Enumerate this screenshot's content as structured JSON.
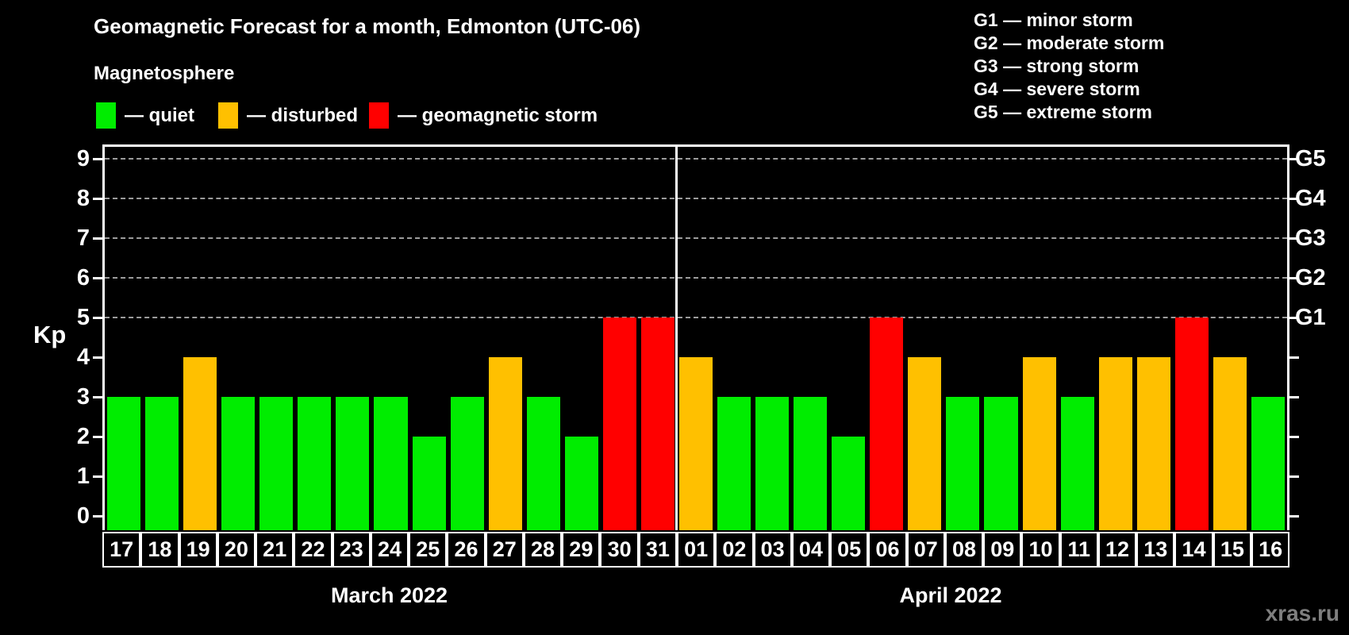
{
  "header": {
    "title": "Geomagnetic Forecast for a month, Edmonton (UTC-06)",
    "subtitle": "Magnetosphere"
  },
  "legend": {
    "items": [
      {
        "key": "quiet",
        "label": "— quiet",
        "color": "#00ed00"
      },
      {
        "key": "disturbed",
        "label": "— disturbed",
        "color": "#ffc000"
      },
      {
        "key": "storm",
        "label": "— geomagnetic storm",
        "color": "#ff0000"
      }
    ]
  },
  "g_scale_legend": {
    "items": [
      "G1 — minor storm",
      "G2 — moderate storm",
      "G3 — strong storm",
      "G4 — severe storm",
      "G5 — extreme storm"
    ]
  },
  "chart_data": {
    "type": "bar",
    "title": "Geomagnetic Forecast for a month, Edmonton (UTC-06)",
    "ylabel": "Kp",
    "ylim": [
      -0.4,
      9.3
    ],
    "grid": true,
    "legend_position": "top-left",
    "y_ticks": [
      0,
      1,
      2,
      3,
      4,
      5,
      6,
      7,
      8,
      9
    ],
    "grid_kp_levels": [
      5,
      6,
      7,
      8,
      9
    ],
    "right_axis_labels": [
      {
        "label": "G1",
        "kp": 5
      },
      {
        "label": "G2",
        "kp": 6
      },
      {
        "label": "G3",
        "kp": 7
      },
      {
        "label": "G4",
        "kp": 8
      },
      {
        "label": "G5",
        "kp": 9
      }
    ],
    "groups": [
      {
        "month": "March 2022",
        "days": [
          "17",
          "18",
          "19",
          "20",
          "21",
          "22",
          "23",
          "24",
          "25",
          "26",
          "27",
          "28",
          "29",
          "30",
          "31"
        ],
        "values": [
          3,
          3,
          4,
          3,
          3,
          3,
          3,
          3,
          2,
          3,
          4,
          3,
          2,
          5,
          5
        ],
        "status": [
          "quiet",
          "quiet",
          "disturbed",
          "quiet",
          "quiet",
          "quiet",
          "quiet",
          "quiet",
          "quiet",
          "quiet",
          "disturbed",
          "quiet",
          "quiet",
          "storm",
          "storm"
        ]
      },
      {
        "month": "April 2022",
        "days": [
          "01",
          "02",
          "03",
          "04",
          "05",
          "06",
          "07",
          "08",
          "09",
          "10",
          "11",
          "12",
          "13",
          "14",
          "15",
          "16"
        ],
        "values": [
          4,
          3,
          3,
          3,
          2,
          5,
          4,
          3,
          3,
          4,
          3,
          4,
          4,
          5,
          4,
          3
        ],
        "status": [
          "disturbed",
          "quiet",
          "quiet",
          "quiet",
          "quiet",
          "storm",
          "disturbed",
          "quiet",
          "quiet",
          "disturbed",
          "quiet",
          "disturbed",
          "disturbed",
          "storm",
          "disturbed",
          "quiet"
        ]
      }
    ]
  },
  "watermark": "xras.ru"
}
